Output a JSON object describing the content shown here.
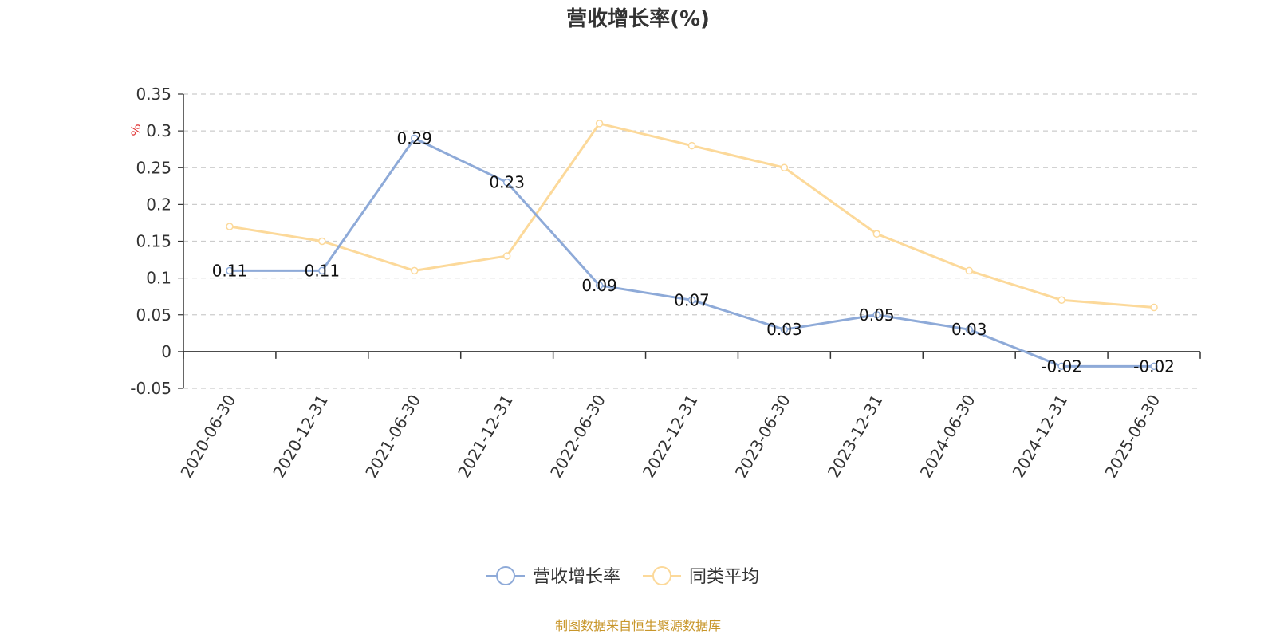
{
  "chart_data": {
    "type": "line",
    "title": "营收增长率(%)",
    "ylabel": "%",
    "ylim": [
      -0.05,
      0.35
    ],
    "yticks": [
      -0.05,
      0,
      0.05,
      0.1,
      0.15,
      0.2,
      0.25,
      0.3,
      0.35
    ],
    "ytick_labels": [
      "-0.05",
      "0",
      "0.05",
      "0.1",
      "0.15",
      "0.2",
      "0.25",
      "0.3",
      "0.35"
    ],
    "grid": true,
    "legend_position": "bottom-center",
    "categories": [
      "2020-06-30",
      "2020-12-31",
      "2021-06-30",
      "2021-12-31",
      "2022-06-30",
      "2022-12-31",
      "2023-06-30",
      "2023-12-31",
      "2024-06-30",
      "2024-12-31",
      "2025-06-30"
    ],
    "series": [
      {
        "name": "营收增长率",
        "color": "#8eaad8",
        "values": [
          0.11,
          0.11,
          0.29,
          0.23,
          0.09,
          0.07,
          0.03,
          0.05,
          0.03,
          -0.02,
          -0.02
        ],
        "labels": [
          "0.11",
          "0.11",
          "0.29",
          "0.23",
          "0.09",
          "0.07",
          "0.03",
          "0.05",
          "0.03",
          "-0.02",
          "-0.02"
        ]
      },
      {
        "name": "同类平均",
        "color": "#fcd99a",
        "values": [
          0.17,
          0.15,
          0.11,
          0.13,
          0.31,
          0.28,
          0.25,
          0.16,
          0.11,
          0.07,
          0.06
        ]
      }
    ],
    "source_note": "制图数据来自恒生聚源数据库",
    "colors": {
      "title": "#333333",
      "axis": "#333333",
      "grid": "#cccccc",
      "ylabel": "#e03030",
      "source": "#c8962a"
    }
  }
}
